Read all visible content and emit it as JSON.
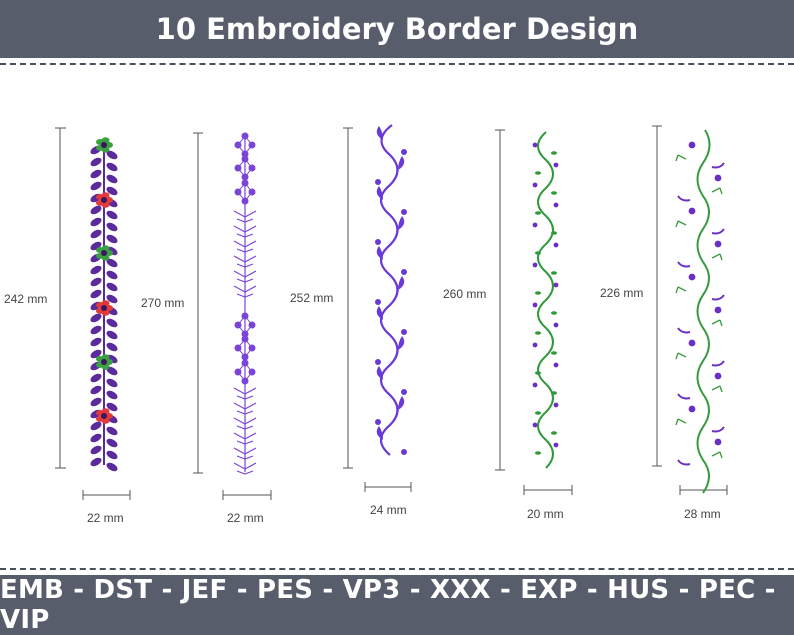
{
  "header": {
    "title": "10 Embroidery Border Design"
  },
  "footer": {
    "formats": "EMB - DST - JEF - PES - VP3 - XXX - EXP - HUS - PEC - VIP"
  },
  "designs": [
    {
      "height_label": "242 mm",
      "width_label": "22 mm",
      "colors": [
        "#5b2b9c",
        "#3aa040",
        "#e03a3a"
      ]
    },
    {
      "height_label": "270 mm",
      "width_label": "22 mm",
      "colors": [
        "#7a45d6"
      ]
    },
    {
      "height_label": "252 mm",
      "width_label": "24 mm",
      "colors": [
        "#6a3ad4"
      ]
    },
    {
      "height_label": "260 mm",
      "width_label": "20 mm",
      "colors": [
        "#2e9a3a",
        "#6a2fc4"
      ]
    },
    {
      "height_label": "226 mm",
      "width_label": "28 mm",
      "colors": [
        "#3a9a40",
        "#6a2fc4"
      ]
    }
  ]
}
